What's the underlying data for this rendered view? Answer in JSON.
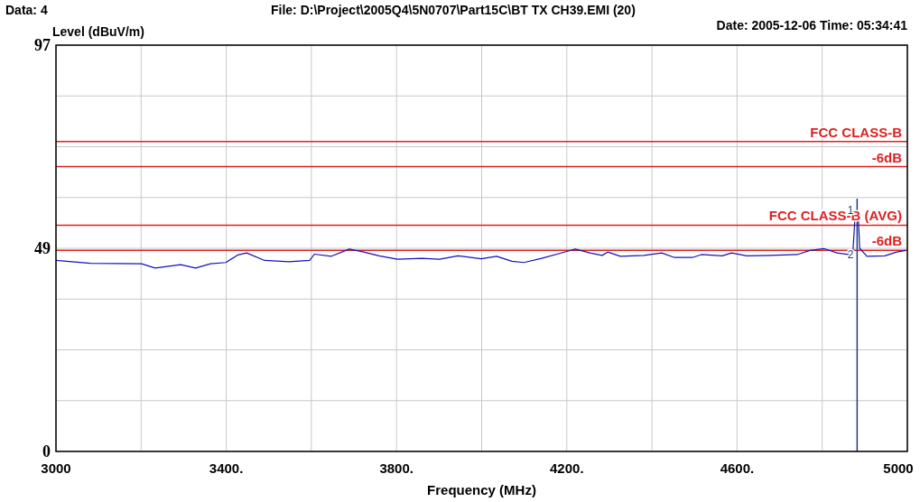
{
  "chart_data": {
    "type": "line",
    "title": "File: D:\\Project\\2005Q4\\5N0707\\Part15C\\BT TX CH39.EMI  (20)",
    "subtitle": "Date: 2005-12-06  Time: 05:34:41",
    "ylabel": "Level (dBuV/m)",
    "xlabel": "Frequency (MHz)",
    "annotations": [
      "Data: 4",
      {
        "text": "1",
        "x": 4882,
        "y": 57.5
      },
      {
        "text": "2",
        "x": 4882,
        "y": 47
      }
    ],
    "xlim": [
      3000,
      5000
    ],
    "xticks": [
      3000,
      {
        "value": 3200,
        "label": null
      },
      {
        "value": 3400,
        "label": "3400."
      },
      {
        "value": 3600,
        "label": null
      },
      {
        "value": 3800,
        "label": "3800."
      },
      {
        "value": 4000,
        "label": null
      },
      {
        "value": 4200,
        "label": "4200."
      },
      {
        "value": 4400,
        "label": null
      },
      {
        "value": 4600,
        "label": "4600."
      },
      {
        "value": 4800,
        "label": null
      },
      5000
    ],
    "ylim": [
      0,
      97
    ],
    "yticks": [
      0,
      {
        "value": 12.125,
        "label": null
      },
      {
        "value": 24.25,
        "label": null
      },
      {
        "value": 36.375,
        "label": null
      },
      {
        "value": 48.5,
        "label": "49"
      },
      {
        "value": 60.625,
        "label": null
      },
      {
        "value": 72.75,
        "label": null
      },
      {
        "value": 84.875,
        "label": null
      },
      97
    ],
    "grid": true,
    "marker": "none",
    "line_style": "solid",
    "ref_lines": [
      {
        "axis": "y",
        "value": 74,
        "label": "FCC CLASS-B",
        "color": "#e02020"
      },
      {
        "axis": "y",
        "value": 68,
        "label": "-6dB",
        "color": "#e02020"
      },
      {
        "axis": "y",
        "value": 54,
        "label": "FCC CLASS-B (AVG)",
        "color": "#e02020"
      },
      {
        "axis": "y",
        "value": 48,
        "label": "-6dB",
        "color": "#e02020"
      },
      {
        "axis": "x",
        "value": 4882,
        "color": "#1f3f7a"
      }
    ],
    "series": [
      {
        "color": "#1414b4",
        "x": [
          3000,
          3081,
          3201,
          3233,
          3293,
          3328,
          3363,
          3399,
          3427,
          3448,
          3490,
          3547,
          3596,
          3607,
          3647,
          3689,
          3723,
          3759,
          3802,
          3859,
          3901,
          3944,
          3999,
          4035,
          4071,
          4099,
          4141,
          4198,
          4220,
          4254,
          4283,
          4296,
          4326,
          4381,
          4423,
          4453,
          4495,
          4516,
          4565,
          4587,
          4623,
          4678,
          4741,
          4771,
          4805,
          4835,
          4862,
          4872,
          4878,
          4884,
          4888,
          4905,
          4947,
          4975,
          4996
        ],
        "values": [
          45.6,
          44.9,
          44.8,
          43.8,
          44.6,
          43.8,
          44.8,
          45.1,
          46.9,
          47.4,
          45.6,
          45.3,
          45.6,
          47.1,
          46.6,
          48.3,
          47.6,
          46.7,
          45.9,
          46.1,
          45.9,
          46.7,
          46.0,
          46.6,
          45.4,
          45.1,
          46.1,
          47.7,
          48.3,
          47.4,
          46.8,
          47.6,
          46.6,
          46.8,
          47.4,
          46.3,
          46.3,
          47.0,
          46.7,
          47.4,
          46.7,
          46.8,
          47.0,
          48.0,
          48.4,
          47.4,
          47.0,
          47.5,
          57.5,
          57.5,
          48.5,
          46.6,
          46.7,
          47.6,
          48.0
        ]
      }
    ]
  }
}
